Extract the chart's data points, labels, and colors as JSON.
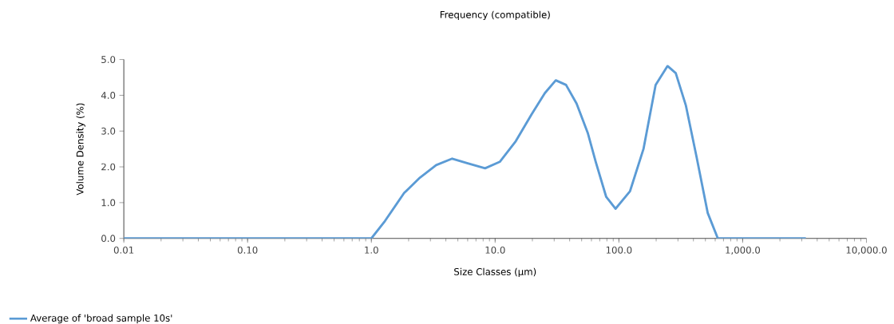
{
  "chart_data": {
    "type": "line",
    "title": "Frequency (compatible)",
    "xlabel": "Size Classes (µm)",
    "ylabel": "Volume Density (%)",
    "log": "x",
    "legend": "bottom left",
    "grid": false,
    "marker": "none",
    "line_style": "solid",
    "xlim": [
      0.01,
      10000
    ],
    "ylim": [
      0,
      5
    ],
    "xticks": [
      0.01,
      {
        "value": 0.1,
        "label": "0.10"
      },
      {
        "value": 1,
        "label": "1.0"
      },
      {
        "value": 10,
        "label": "10.0"
      },
      {
        "value": 100,
        "label": "100.0"
      },
      {
        "value": 1000,
        "label": "1,000.0"
      },
      {
        "value": 10000,
        "label": "10,000.0"
      }
    ],
    "yticks": [
      {
        "value": 0,
        "label": "0.0"
      },
      {
        "value": 1,
        "label": "1.0"
      },
      {
        "value": 2,
        "label": "2.0"
      },
      {
        "value": 3,
        "label": "3.0"
      },
      {
        "value": 4,
        "label": "4.0"
      },
      {
        "value": 5,
        "label": "5.0"
      }
    ],
    "series": [
      {
        "name": "Average of 'broad sample 10s'",
        "color": "#5b9bd5",
        "x": [
          0.01,
          0.1,
          1.0,
          1.29,
          1.84,
          2.47,
          3.34,
          4.5,
          6.0,
          8.3,
          10.9,
          14.7,
          19.8,
          25.2,
          30.9,
          37.4,
          45.5,
          56,
          65,
          79,
          94,
          123,
          158,
          198,
          247,
          288,
          348,
          424,
          522,
          630,
          3240
        ],
        "values": [
          0,
          0,
          0,
          0.49,
          1.27,
          1.7,
          2.05,
          2.23,
          2.1,
          1.96,
          2.14,
          2.72,
          3.48,
          4.06,
          4.42,
          4.29,
          3.77,
          2.95,
          2.14,
          1.16,
          0.83,
          1.32,
          2.5,
          4.29,
          4.82,
          4.62,
          3.71,
          2.28,
          0.71,
          0,
          0
        ]
      }
    ]
  }
}
